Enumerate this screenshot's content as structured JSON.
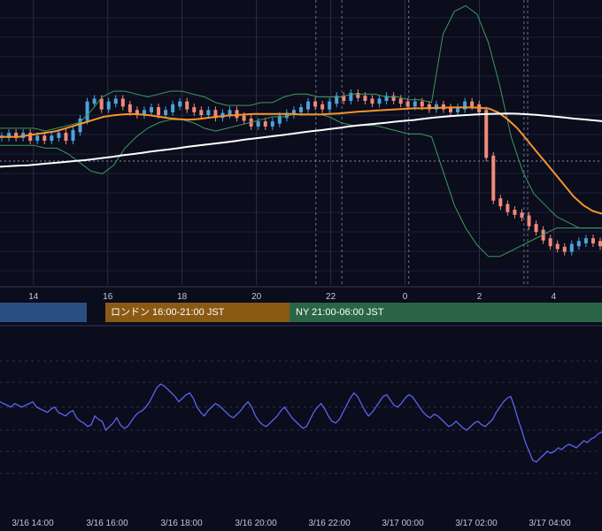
{
  "sessions": [
    {
      "label": "",
      "color": "#2b4e80"
    },
    {
      "label": "ロンドン 16:00-21:00 JST",
      "color": "#8a5a14"
    },
    {
      "label": "NY 21:00-06:00 JST",
      "color": "#2a6646"
    }
  ],
  "chart_data": [
    {
      "type": "line",
      "subtype": "candlestick",
      "x_ticks": [
        "14",
        "16",
        "18",
        "20",
        "22",
        "0",
        "2",
        "4"
      ],
      "x_tick_hours": [
        14,
        16,
        18,
        20,
        22,
        24,
        26,
        28
      ],
      "x_range_hours": [
        13.1,
        29.3
      ],
      "y_range": [
        0,
        100
      ],
      "grid": true,
      "colors": {
        "up": "#4aa3e0",
        "down": "#f08a7a",
        "ma": "#f5952a",
        "long_ma": "#ffffff",
        "bands": "#3e9a5c"
      },
      "series": [
        {
          "values": [
            52,
            53,
            52,
            53,
            51,
            52,
            51,
            52,
            53,
            51,
            54,
            58,
            64,
            65,
            62,
            64,
            65,
            63,
            61,
            60,
            61,
            62,
            60,
            61,
            63,
            64,
            62,
            61,
            60,
            61,
            59,
            60,
            61,
            59,
            58,
            56,
            57,
            56,
            57,
            59,
            60,
            61,
            62,
            64,
            63,
            62,
            64,
            66,
            65,
            67,
            66,
            65,
            64,
            65,
            66,
            65,
            64,
            63,
            64,
            63,
            62,
            63,
            62,
            61,
            62,
            64,
            63,
            61,
            45,
            30,
            28,
            26,
            25,
            24,
            21,
            19,
            16,
            14,
            13,
            12,
            14,
            15,
            16,
            15,
            14
          ]
        },
        {
          "values": [
            52,
            52,
            52,
            52.5,
            53,
            53.5,
            54,
            55,
            56,
            57,
            58,
            59,
            59.5,
            59.8,
            60,
            59.8,
            59.5,
            59,
            58.5,
            58.2,
            58,
            58.2,
            58.6,
            59,
            59.4,
            59.6,
            59.8,
            60,
            60,
            60,
            60,
            60,
            59.8,
            59.8,
            59.8,
            60,
            60.2,
            60.5,
            60.8,
            61,
            61.2,
            61.4,
            61.6,
            61.8,
            62,
            62,
            62.1,
            62.2,
            62.3,
            62.3,
            62.3,
            62.2,
            61.9,
            60.5,
            58,
            55,
            51,
            47,
            43,
            39,
            35,
            31,
            28,
            26,
            25
          ]
        },
        {
          "values": [
            41.5,
            41.7,
            41.9,
            42,
            42.3,
            42.6,
            42.9,
            43.2,
            43.5,
            43.8,
            44.2,
            44.6,
            45,
            45.5,
            45.9,
            46.3,
            46.8,
            47.2,
            47.6,
            48,
            48.5,
            48.9,
            49.3,
            49.7,
            50.1,
            50.5,
            51,
            51.4,
            51.8,
            52.2,
            52.6,
            53,
            53.5,
            53.9,
            54.3,
            54.7,
            55.1,
            55.6,
            56,
            56.3,
            56.6,
            56.9,
            57.3,
            57.6,
            57.9,
            58.3,
            58.7,
            59,
            59.3,
            59.5,
            59.7,
            59.9,
            60,
            60.1,
            60.2,
            60.1,
            59.9,
            59.7,
            59.4,
            59.1,
            58.8,
            58.4,
            58.1,
            57.8,
            57.5
          ]
        }
      ],
      "bands": {
        "upper": [
          55,
          55,
          55,
          55,
          54,
          55,
          56,
          57,
          61,
          66,
          68,
          68,
          67,
          66,
          67,
          68,
          68,
          67,
          66,
          64,
          63,
          63,
          63,
          64,
          64,
          66,
          67,
          67,
          66,
          66,
          66,
          67,
          67,
          67,
          66,
          66,
          65,
          65,
          64,
          88,
          96,
          98,
          95,
          85,
          70,
          52,
          40,
          32,
          28,
          24,
          22,
          20,
          20,
          20
        ],
        "lower": [
          49,
          49,
          49,
          49,
          48,
          48,
          46,
          43,
          40,
          39,
          42,
          48,
          52,
          55,
          57,
          58,
          58,
          57,
          55,
          54,
          55,
          56,
          57,
          58,
          59,
          59,
          60,
          60,
          60,
          59,
          57,
          56,
          56,
          56,
          55,
          54,
          53,
          53,
          52,
          40,
          28,
          20,
          14,
          10,
          10,
          12,
          14,
          16,
          18,
          20,
          20,
          20,
          20,
          20
        ]
      }
    },
    {
      "type": "line",
      "x_ticks": [
        "3/16 14:00",
        "3/16 16:00",
        "3/16 18:00",
        "3/16 20:00",
        "3/16 22:00",
        "3/17 00:00",
        "3/17 02:00",
        "3/17 04:00"
      ],
      "y_range": [
        0,
        100
      ],
      "grid": true,
      "color": "#5a63f0",
      "series": [
        {
          "values": [
            58,
            57,
            56,
            55,
            57,
            56,
            55,
            56,
            57,
            58,
            55,
            54,
            53,
            52,
            54,
            55,
            52,
            51,
            50,
            52,
            53,
            49,
            47,
            46,
            44,
            45,
            50,
            48,
            47,
            42,
            44,
            46,
            49,
            45,
            43,
            44,
            47,
            50,
            52,
            53,
            55,
            58,
            62,
            66,
            68,
            67,
            65,
            63,
            61,
            58,
            60,
            62,
            63,
            60,
            55,
            52,
            50,
            53,
            55,
            57,
            56,
            54,
            52,
            50,
            49,
            51,
            53,
            56,
            58,
            55,
            50,
            47,
            45,
            44,
            46,
            48,
            50,
            53,
            55,
            52,
            49,
            47,
            45,
            43,
            44,
            48,
            52,
            55,
            57,
            54,
            50,
            47,
            46,
            48,
            52,
            56,
            60,
            63,
            61,
            57,
            53,
            50,
            52,
            55,
            58,
            61,
            62,
            59,
            56,
            55,
            57,
            60,
            62,
            61,
            58,
            55,
            52,
            50,
            49,
            51,
            50,
            48,
            46,
            44,
            45,
            47,
            45,
            43,
            42,
            44,
            46,
            47,
            45,
            44,
            46,
            48,
            52,
            55,
            58,
            60,
            61,
            55,
            48,
            42,
            35,
            30,
            25,
            24,
            26,
            28,
            30,
            29,
            30,
            32,
            31,
            33,
            34,
            33,
            32,
            34,
            36,
            35,
            37,
            38,
            40,
            41
          ]
        }
      ]
    }
  ]
}
